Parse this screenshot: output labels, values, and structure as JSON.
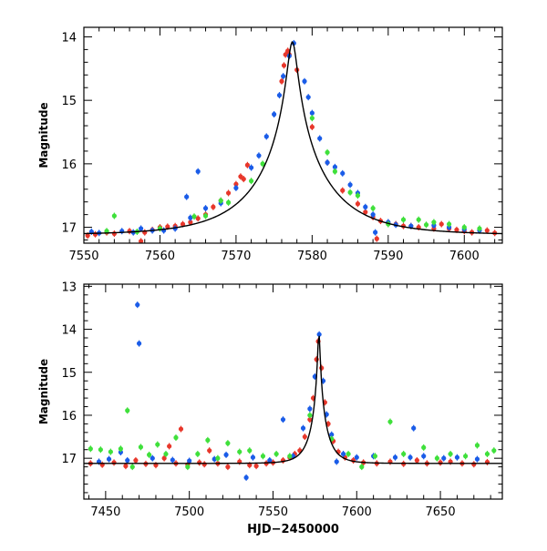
{
  "chart_data": [
    {
      "type": "scatter",
      "title": "",
      "xlabel": "",
      "ylabel": "Magnitude",
      "xlim": [
        7550,
        7605
      ],
      "ylim": [
        17.25,
        13.85
      ],
      "y_inverted": true,
      "x_ticks": [
        7550,
        7560,
        7570,
        7580,
        7590,
        7600
      ],
      "y_ticks": [
        14,
        15,
        16,
        17
      ],
      "grid": false,
      "model": {
        "t0": 7577.4,
        "peak": 14.08,
        "base": 17.12,
        "tE": 9.5,
        "u0": 0.062
      },
      "series": [
        {
          "color": "#e8372b",
          "points": [
            [
              7550.5,
              17.13
            ],
            [
              7551.5,
              17.11
            ],
            [
              7553,
              17.08
            ],
            [
              7554,
              17.1
            ],
            [
              7556,
              17.06
            ],
            [
              7558,
              17.08
            ],
            [
              7559,
              17.04
            ],
            [
              7560,
              17.0
            ],
            [
              7561,
              16.99
            ],
            [
              7562,
              16.98
            ],
            [
              7563,
              16.95
            ],
            [
              7564,
              16.92
            ],
            [
              7565,
              16.86
            ],
            [
              7566,
              16.8
            ],
            [
              7567,
              16.68
            ],
            [
              7568,
              16.58
            ],
            [
              7569,
              16.46
            ],
            [
              7570,
              16.32
            ],
            [
              7570.6,
              16.2
            ],
            [
              7571,
              16.24
            ],
            [
              7571.5,
              16.02
            ],
            [
              7576,
              14.7
            ],
            [
              7576.3,
              14.45
            ],
            [
              7576.5,
              14.28
            ],
            [
              7576.8,
              14.22
            ],
            [
              7577,
              14.28
            ],
            [
              7578,
              14.52
            ],
            [
              7580,
              15.42
            ],
            [
              7582,
              15.98
            ],
            [
              7584,
              16.42
            ],
            [
              7586,
              16.63
            ],
            [
              7587,
              16.76
            ],
            [
              7588,
              16.84
            ],
            [
              7589,
              16.9
            ],
            [
              7590,
              16.93
            ],
            [
              7591,
              16.95
            ],
            [
              7592,
              16.98
            ],
            [
              7593,
              16.98
            ],
            [
              7594,
              17.0
            ],
            [
              7596,
              17.02
            ],
            [
              7597,
              16.95
            ],
            [
              7598,
              17.02
            ],
            [
              7599,
              17.04
            ],
            [
              7600,
              17.06
            ],
            [
              7601,
              17.08
            ],
            [
              7603,
              17.05
            ],
            [
              7604,
              17.09
            ],
            [
              7557.5,
              17.22
            ],
            [
              7588.5,
              17.18
            ]
          ]
        },
        {
          "color": "#1a5ce8",
          "points": [
            [
              7551,
              17.07
            ],
            [
              7552,
              17.09
            ],
            [
              7555,
              17.06
            ],
            [
              7556.5,
              17.08
            ],
            [
              7557.5,
              17.02
            ],
            [
              7559,
              17.05
            ],
            [
              7560.5,
              17.05
            ],
            [
              7562,
              17.02
            ],
            [
              7564,
              16.85
            ],
            [
              7565,
              16.12
            ],
            [
              7563.5,
              16.52
            ],
            [
              7566,
              16.7
            ],
            [
              7568,
              16.62
            ],
            [
              7570,
              16.38
            ],
            [
              7572,
              16.06
            ],
            [
              7573,
              15.87
            ],
            [
              7574,
              15.57
            ],
            [
              7575,
              15.22
            ],
            [
              7575.7,
              14.92
            ],
            [
              7576.2,
              14.62
            ],
            [
              7577,
              14.3
            ],
            [
              7577.6,
              14.1
            ],
            [
              7579,
              14.7
            ],
            [
              7579.5,
              14.95
            ],
            [
              7580,
              15.2
            ],
            [
              7581,
              15.6
            ],
            [
              7582,
              15.98
            ],
            [
              7583,
              16.05
            ],
            [
              7584,
              16.15
            ],
            [
              7585,
              16.33
            ],
            [
              7586,
              16.46
            ],
            [
              7587,
              16.68
            ],
            [
              7588,
              16.8
            ],
            [
              7588.3,
              17.08
            ],
            [
              7590,
              16.92
            ],
            [
              7591,
              16.96
            ],
            [
              7593,
              16.98
            ],
            [
              7596,
              16.97
            ],
            [
              7598,
              17.0
            ],
            [
              7600,
              17.03
            ],
            [
              7602,
              17.05
            ]
          ]
        },
        {
          "color": "#3fe03b",
          "points": [
            [
              7553,
              17.06
            ],
            [
              7554,
              16.82
            ],
            [
              7557,
              17.07
            ],
            [
              7560,
              17.02
            ],
            [
              7564.5,
              16.83
            ],
            [
              7566,
              16.82
            ],
            [
              7568,
              16.58
            ],
            [
              7569,
              16.61
            ],
            [
              7572,
              16.27
            ],
            [
              7573.5,
              16.0
            ],
            [
              7580,
              15.28
            ],
            [
              7582,
              15.82
            ],
            [
              7583,
              16.12
            ],
            [
              7585,
              16.45
            ],
            [
              7586,
              16.5
            ],
            [
              7588,
              16.7
            ],
            [
              7590,
              16.95
            ],
            [
              7592,
              16.88
            ],
            [
              7594,
              16.88
            ],
            [
              7595,
              16.96
            ],
            [
              7596,
              16.92
            ],
            [
              7598,
              16.95
            ],
            [
              7600,
              17.0
            ],
            [
              7602,
              17.02
            ]
          ]
        }
      ]
    },
    {
      "type": "scatter",
      "title": "",
      "xlabel": "HJD−2450000",
      "ylabel": "Magnitude",
      "xlim": [
        7437,
        7687
      ],
      "ylim": [
        17.95,
        12.95
      ],
      "y_inverted": true,
      "x_ticks": [
        7450,
        7500,
        7550,
        7600,
        7650
      ],
      "y_ticks": [
        13,
        14,
        15,
        16,
        17
      ],
      "grid": false,
      "model": {
        "t0": 7577.4,
        "peak": 14.08,
        "base": 17.12,
        "tE": 9.5,
        "u0": 0.062
      },
      "series": [
        {
          "color": "#e8372b",
          "points": [
            [
              7441,
              17.12
            ],
            [
              7448,
              17.15
            ],
            [
              7455,
              17.1
            ],
            [
              7462,
              17.18
            ],
            [
              7468,
              17.05
            ],
            [
              7474,
              17.13
            ],
            [
              7480,
              17.16
            ],
            [
              7485,
              17.0
            ],
            [
              7488,
              16.72
            ],
            [
              7492,
              17.12
            ],
            [
              7495,
              16.32
            ],
            [
              7499,
              17.15
            ],
            [
              7506,
              17.1
            ],
            [
              7509,
              17.14
            ],
            [
              7512,
              16.82
            ],
            [
              7517,
              17.12
            ],
            [
              7523,
              17.2
            ],
            [
              7530,
              17.08
            ],
            [
              7536,
              17.16
            ],
            [
              7540,
              17.18
            ],
            [
              7546,
              17.12
            ],
            [
              7550,
              17.1
            ],
            [
              7556,
              17.05
            ],
            [
              7560,
              16.98
            ],
            [
              7563,
              16.9
            ],
            [
              7566,
              16.82
            ],
            [
              7569,
              16.5
            ],
            [
              7572,
              16.1
            ],
            [
              7574,
              15.6
            ],
            [
              7576,
              14.7
            ],
            [
              7577,
              14.28
            ],
            [
              7579,
              14.9
            ],
            [
              7581,
              15.7
            ],
            [
              7583,
              16.2
            ],
            [
              7586,
              16.6
            ],
            [
              7589,
              16.85
            ],
            [
              7593,
              16.98
            ],
            [
              7598,
              17.05
            ],
            [
              7604,
              17.1
            ],
            [
              7612,
              17.12
            ],
            [
              7620,
              17.08
            ],
            [
              7628,
              17.13
            ],
            [
              7636,
              17.05
            ],
            [
              7642,
              17.12
            ],
            [
              7650,
              17.1
            ],
            [
              7656,
              17.08
            ],
            [
              7663,
              17.12
            ],
            [
              7670,
              17.14
            ],
            [
              7678,
              17.09
            ]
          ]
        },
        {
          "color": "#1a5ce8",
          "points": [
            [
              7446,
              17.08
            ],
            [
              7452,
              17.02
            ],
            [
              7459,
              16.86
            ],
            [
              7463,
              17.05
            ],
            [
              7469,
              13.43
            ],
            [
              7470,
              14.33
            ],
            [
              7478,
              17.0
            ],
            [
              7490,
              17.04
            ],
            [
              7500,
              17.06
            ],
            [
              7515,
              17.02
            ],
            [
              7522,
              16.92
            ],
            [
              7534,
              17.45
            ],
            [
              7538,
              16.98
            ],
            [
              7548,
              17.05
            ],
            [
              7556,
              16.1
            ],
            [
              7562,
              16.95
            ],
            [
              7568,
              16.3
            ],
            [
              7572,
              15.85
            ],
            [
              7575,
              15.1
            ],
            [
              7577.6,
              14.12
            ],
            [
              7580,
              15.2
            ],
            [
              7582,
              15.98
            ],
            [
              7585,
              16.45
            ],
            [
              7588,
              17.08
            ],
            [
              7592,
              16.9
            ],
            [
              7600,
              16.98
            ],
            [
              7610,
              16.95
            ],
            [
              7623,
              16.98
            ],
            [
              7632,
              16.98
            ],
            [
              7634,
              16.3
            ],
            [
              7640,
              16.95
            ],
            [
              7652,
              17.0
            ],
            [
              7660,
              16.98
            ],
            [
              7672,
              17.02
            ]
          ]
        },
        {
          "color": "#3fe03b",
          "points": [
            [
              7441,
              16.78
            ],
            [
              7447,
              16.8
            ],
            [
              7453,
              16.85
            ],
            [
              7459,
              16.78
            ],
            [
              7463,
              15.89
            ],
            [
              7466,
              17.2
            ],
            [
              7471,
              16.74
            ],
            [
              7476,
              16.92
            ],
            [
              7481,
              16.68
            ],
            [
              7486,
              16.9
            ],
            [
              7492,
              16.52
            ],
            [
              7499,
              17.2
            ],
            [
              7505,
              16.9
            ],
            [
              7511,
              16.58
            ],
            [
              7517,
              17.0
            ],
            [
              7523,
              16.65
            ],
            [
              7530,
              16.85
            ],
            [
              7536,
              16.82
            ],
            [
              7544,
              16.95
            ],
            [
              7552,
              16.9
            ],
            [
              7560,
              16.95
            ],
            [
              7572,
              16.0
            ],
            [
              7585,
              16.55
            ],
            [
              7595,
              16.9
            ],
            [
              7603,
              17.2
            ],
            [
              7611,
              16.95
            ],
            [
              7620,
              16.15
            ],
            [
              7628,
              16.9
            ],
            [
              7640,
              16.75
            ],
            [
              7648,
              17.0
            ],
            [
              7656,
              16.9
            ],
            [
              7665,
              16.95
            ],
            [
              7672,
              16.7
            ],
            [
              7678,
              16.9
            ],
            [
              7682,
              16.82
            ]
          ]
        }
      ]
    }
  ]
}
